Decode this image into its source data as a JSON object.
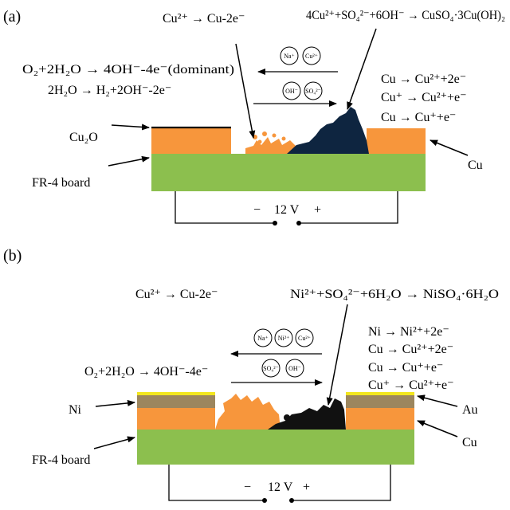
{
  "panel_a": {
    "label": "(a)",
    "eq_cu_dissolution": "Cu²⁺ → Cu-2e⁻",
    "eq_precipitate": "4Cu²⁺+SO₄²⁻+6OH⁻ → CuSO₄·3Cu(OH)₂",
    "eq_oxygen_reduction": "O₂+2H₂O → 4OH⁻-4e⁻(dominant)",
    "eq_hydrogen": "2H₂O → H₂+2OH⁻-2e⁻",
    "anode_reactions": [
      "Cu → Cu²⁺+2e⁻",
      "Cu⁺ → Cu²⁺+e⁻",
      "Cu → Cu⁺+e⁻"
    ],
    "ions_left_arrow": [
      "Na⁺",
      "Cu²⁺"
    ],
    "ions_right_arrow": [
      "OH⁻",
      "SO₄²⁻"
    ],
    "label_cu2o": "Cu₂O",
    "label_cu": "Cu",
    "label_board": "FR-4 board",
    "bias_minus": "−",
    "bias_voltage": "12 V",
    "bias_plus": "+"
  },
  "panel_b": {
    "label": "(b)",
    "eq_cu_dissolution": "Cu²⁺ → Cu-2e⁻",
    "eq_precipitate": "Ni²⁺+SO₄²⁻+6H₂O → NiSO₄·6H₂O",
    "eq_oxygen_reduction": "O₂+2H₂O → 4OH⁻-4e⁻",
    "anode_reactions": [
      "Ni → Ni²⁺+2e⁻",
      "Cu → Cu²⁺+2e⁻",
      "Cu → Cu⁺+e⁻",
      "Cu⁺ → Cu²⁺+e⁻"
    ],
    "ions_left_arrow": [
      "Na⁺",
      "Ni²⁺",
      "Cu²⁺"
    ],
    "ions_right_arrow": [
      "SO₄²⁻",
      "OH⁻"
    ],
    "label_ni": "Ni",
    "label_au": "Au",
    "label_cu": "Cu",
    "label_board": "FR-4 board",
    "bias_minus": "−",
    "bias_voltage": "12 V",
    "bias_plus": "+"
  },
  "colors": {
    "copper": "#F7963C",
    "board": "#8CBF4E",
    "nickel": "#9C865E",
    "gold": "#F2E61E",
    "precipitate_a": "#0E2540",
    "precipitate_b": "#111111"
  }
}
